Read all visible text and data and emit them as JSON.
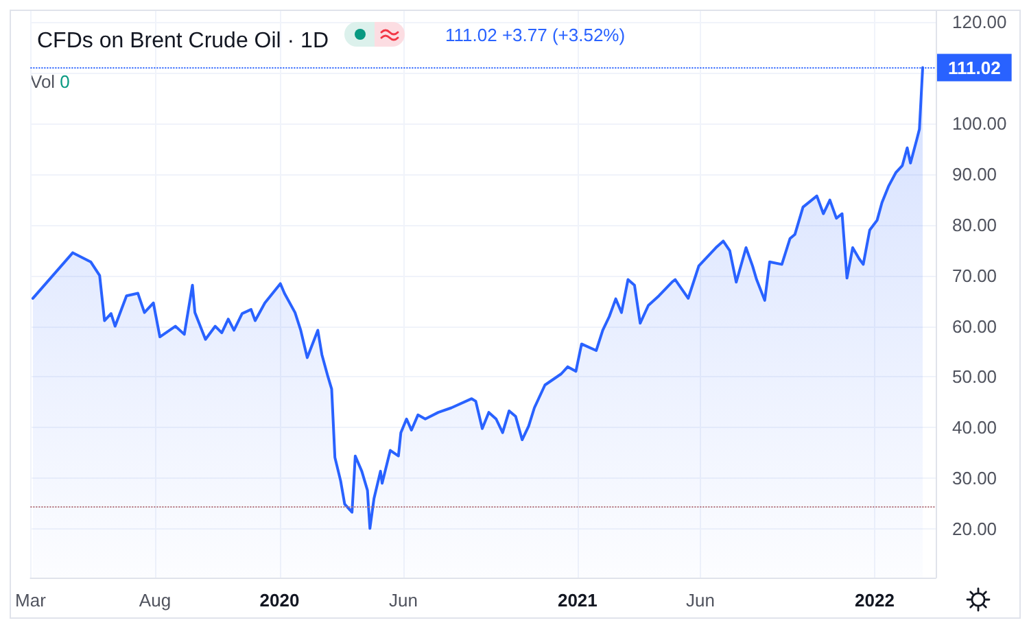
{
  "chart_data": {
    "type": "area",
    "title": "CFDs on Brent Crude Oil · 1D",
    "annotations": [
      "111.02 +3.77 (+3.52%)",
      "Vol 0"
    ],
    "x": [
      "2019-03-04",
      "2019-04-22",
      "2019-05-14",
      "2019-05-25",
      "2019-05-31",
      "2019-06-08",
      "2019-06-13",
      "2019-06-27",
      "2019-07-11",
      "2019-07-19",
      "2019-07-30",
      "2019-08-07",
      "2019-08-26",
      "2019-09-06",
      "2019-09-16",
      "2019-09-19",
      "2019-10-02",
      "2019-10-14",
      "2019-10-22",
      "2019-10-30",
      "2019-11-06",
      "2019-11-16",
      "2019-11-27",
      "2019-12-02",
      "2019-12-14",
      "2020-01-02",
      "2020-01-07",
      "2020-01-20",
      "2020-01-27",
      "2020-02-04",
      "2020-02-17",
      "2020-02-22",
      "2020-02-29",
      "2020-03-05",
      "2020-03-09",
      "2020-03-16",
      "2020-03-21",
      "2020-03-30",
      "2020-04-03",
      "2020-04-11",
      "2020-04-18",
      "2020-04-21",
      "2020-04-26",
      "2020-05-04",
      "2020-05-06",
      "2020-05-16",
      "2020-05-26",
      "2020-05-29",
      "2020-06-05",
      "2020-06-11",
      "2020-06-19",
      "2020-06-28",
      "2020-07-14",
      "2020-07-30",
      "2020-08-24",
      "2020-08-29",
      "2020-09-06",
      "2020-09-14",
      "2020-09-23",
      "2020-10-01",
      "2020-10-09",
      "2020-10-17",
      "2020-10-25",
      "2020-11-02",
      "2020-11-09",
      "2020-11-22",
      "2020-12-12",
      "2020-12-20",
      "2020-12-30",
      "2021-01-06",
      "2021-01-24",
      "2021-02-01",
      "2021-02-09",
      "2021-02-17",
      "2021-02-24",
      "2021-03-04",
      "2021-03-12",
      "2021-03-19",
      "2021-03-29",
      "2021-04-11",
      "2021-04-27",
      "2021-05-01",
      "2021-05-17",
      "2021-05-30",
      "2021-06-20",
      "2021-06-29",
      "2021-07-07",
      "2021-07-15",
      "2021-07-27",
      "2021-08-04",
      "2021-08-09",
      "2021-08-19",
      "2021-08-25",
      "2021-09-09",
      "2021-09-19",
      "2021-09-25",
      "2021-10-05",
      "2021-10-22",
      "2021-10-30",
      "2021-11-07",
      "2021-11-15",
      "2021-11-22",
      "2021-11-28",
      "2021-12-05",
      "2021-12-13",
      "2021-12-18",
      "2021-12-26",
      "2022-01-04",
      "2022-01-10",
      "2022-01-18",
      "2022-01-27",
      "2022-02-04",
      "2022-02-10",
      "2022-02-14",
      "2022-02-22",
      "2022-02-25",
      "2022-03-01"
    ],
    "series": [
      {
        "color": "#2962ff",
        "values": [
          65.5,
          74.5,
          72.7,
          70,
          61.1,
          62.5,
          60,
          66,
          66.5,
          62.7,
          64.6,
          57.9,
          60,
          58.4,
          68.1,
          62.7,
          57.4,
          60,
          58.7,
          61.4,
          59.2,
          62.5,
          63.3,
          61.1,
          64.6,
          68.4,
          66.5,
          62.7,
          59.2,
          53.8,
          59.2,
          54.4,
          50.3,
          47.6,
          34.1,
          29.5,
          24.9,
          23.3,
          34.4,
          31.4,
          27.6,
          20.1,
          26,
          31.4,
          29,
          35.5,
          34.4,
          39,
          41.7,
          39.5,
          42.5,
          41.7,
          43,
          43.9,
          45.7,
          45.2,
          39.8,
          43,
          41.7,
          39,
          43.3,
          42.2,
          37.6,
          40.3,
          43.9,
          48.4,
          50.6,
          52,
          51.1,
          56.5,
          55.2,
          59.2,
          61.9,
          65.4,
          62.7,
          69.2,
          68.1,
          60.6,
          64.1,
          66,
          68.7,
          69.2,
          65.5,
          71.9,
          75.5,
          76.8,
          74.9,
          68.7,
          75.5,
          71.9,
          69.2,
          65.1,
          72.7,
          72.2,
          77.3,
          78.1,
          83.5,
          85.7,
          82.2,
          84.9,
          81.3,
          82.2,
          69.5,
          75.5,
          73.3,
          72.2,
          79,
          80.9,
          84.4,
          87.6,
          90.3,
          91.7,
          95.2,
          92.2,
          97,
          98.9,
          111.02
        ]
      }
    ],
    "xlim": [
      "2019-03-01",
      "2022-03-17"
    ],
    "xticks": [
      {
        "value": "2019-03",
        "label": "Mar"
      },
      {
        "value": "2019-08",
        "label": "Aug"
      },
      {
        "value": "2020",
        "label": "2020"
      },
      {
        "value": "2020-06",
        "label": "Jun"
      },
      {
        "value": "2021",
        "label": "2021"
      },
      {
        "value": "2021-06",
        "label": "Jun"
      },
      {
        "value": "2022",
        "label": "2022"
      }
    ],
    "ylim": [
      10.4,
      122.2
    ],
    "yticks": [
      {
        "value": 20,
        "label": "20.00"
      },
      {
        "value": 30,
        "label": "30.00"
      },
      {
        "value": 40,
        "label": "40.00"
      },
      {
        "value": 50,
        "label": "50.00"
      },
      {
        "value": 60,
        "label": "60.00"
      },
      {
        "value": 70,
        "label": "70.00"
      },
      {
        "value": 80,
        "label": "80.00"
      },
      {
        "value": 90,
        "label": "90.00"
      },
      {
        "value": 100,
        "label": "100.00"
      },
      {
        "value": 110,
        "label": null
      },
      {
        "value": 120,
        "label": "120.00"
      }
    ],
    "ref_lines": [
      {
        "axis": "y",
        "value": 111.02,
        "label": "111.02",
        "color": "#2962ff",
        "line_style": "dotted"
      },
      {
        "axis": "y",
        "value": 24.3,
        "label": null,
        "color": "#b0707a",
        "line_style": "dotted"
      }
    ],
    "grid": true,
    "marker": "none"
  }
}
